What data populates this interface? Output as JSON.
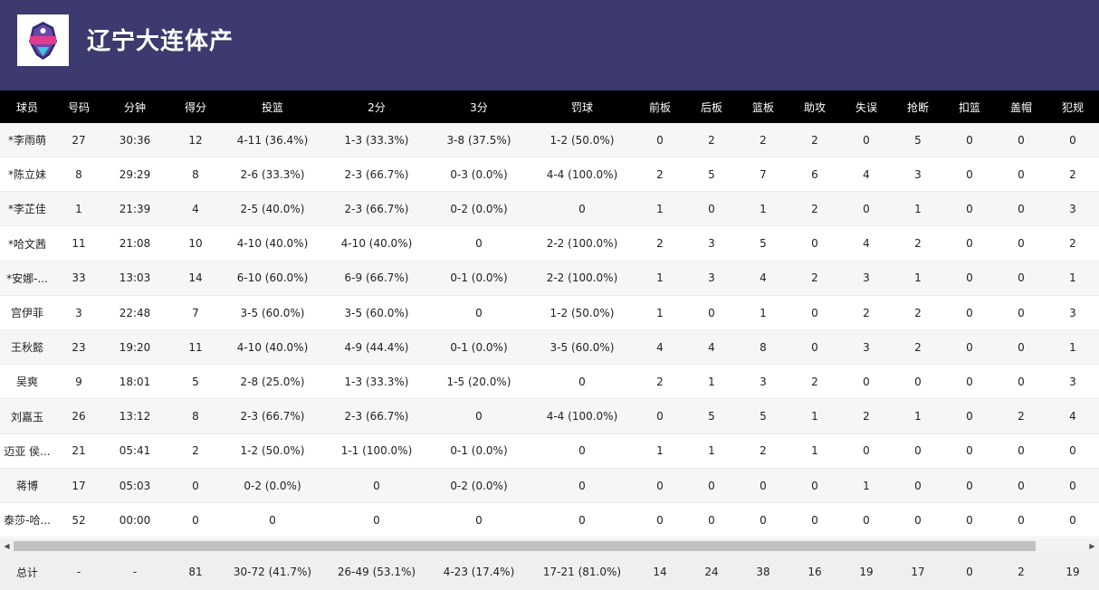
{
  "team": {
    "name": "辽宁大连体产",
    "logo_icon": "liaoning-flying-leopards-logo"
  },
  "columns": [
    "球员",
    "号码",
    "分钟",
    "得分",
    "投篮",
    "2分",
    "3分",
    "罚球",
    "前板",
    "后板",
    "篮板",
    "助攻",
    "失误",
    "抢断",
    "扣篮",
    "盖帽",
    "犯规"
  ],
  "rows": [
    [
      "*李雨萌",
      "27",
      "30:36",
      "12",
      "4-11 (36.4%)",
      "1-3 (33.3%)",
      "3-8 (37.5%)",
      "1-2 (50.0%)",
      "0",
      "2",
      "2",
      "2",
      "0",
      "5",
      "0",
      "0",
      "0"
    ],
    [
      "*陈立妹",
      "8",
      "29:29",
      "8",
      "2-6 (33.3%)",
      "2-3 (66.7%)",
      "0-3 (0.0%)",
      "4-4 (100.0%)",
      "2",
      "5",
      "7",
      "6",
      "4",
      "3",
      "0",
      "0",
      "2"
    ],
    [
      "*李芷佳",
      "1",
      "21:39",
      "4",
      "2-5 (40.0%)",
      "2-3 (66.7%)",
      "0-2 (0.0%)",
      "0",
      "1",
      "0",
      "1",
      "2",
      "0",
      "1",
      "0",
      "0",
      "3"
    ],
    [
      "*哈文茜",
      "11",
      "21:08",
      "10",
      "4-10 (40.0%)",
      "4-10 (40.0%)",
      "0",
      "2-2 (100.0%)",
      "2",
      "3",
      "5",
      "0",
      "4",
      "2",
      "0",
      "0",
      "2"
    ],
    [
      "*安娜-...",
      "33",
      "13:03",
      "14",
      "6-10 (60.0%)",
      "6-9 (66.7%)",
      "0-1 (0.0%)",
      "2-2 (100.0%)",
      "1",
      "3",
      "4",
      "2",
      "3",
      "1",
      "0",
      "0",
      "1"
    ],
    [
      "宫伊菲",
      "3",
      "22:48",
      "7",
      "3-5 (60.0%)",
      "3-5 (60.0%)",
      "0",
      "1-2 (50.0%)",
      "1",
      "0",
      "1",
      "0",
      "2",
      "2",
      "0",
      "0",
      "3"
    ],
    [
      "王秋懿",
      "23",
      "19:20",
      "11",
      "4-10 (40.0%)",
      "4-9 (44.4%)",
      "0-1 (0.0%)",
      "3-5 (60.0%)",
      "4",
      "4",
      "8",
      "0",
      "3",
      "2",
      "0",
      "0",
      "1"
    ],
    [
      "吴爽",
      "9",
      "18:01",
      "5",
      "2-8 (25.0%)",
      "1-3 (33.3%)",
      "1-5 (20.0%)",
      "0",
      "2",
      "1",
      "3",
      "2",
      "0",
      "0",
      "0",
      "0",
      "3"
    ],
    [
      "刘嘉玉",
      "26",
      "13:12",
      "8",
      "2-3 (66.7%)",
      "2-3 (66.7%)",
      "0",
      "4-4 (100.0%)",
      "0",
      "5",
      "5",
      "1",
      "2",
      "1",
      "0",
      "2",
      "4"
    ],
    [
      "迈亚 侯...",
      "21",
      "05:41",
      "2",
      "1-2 (50.0%)",
      "1-1 (100.0%)",
      "0-1 (0.0%)",
      "0",
      "1",
      "1",
      "2",
      "1",
      "0",
      "0",
      "0",
      "0",
      "0"
    ],
    [
      "蒋博",
      "17",
      "05:03",
      "0",
      "0-2 (0.0%)",
      "0",
      "0-2 (0.0%)",
      "0",
      "0",
      "0",
      "0",
      "0",
      "1",
      "0",
      "0",
      "0",
      "0"
    ],
    [
      "泰莎-哈...",
      "52",
      "00:00",
      "0",
      "0",
      "0",
      "0",
      "0",
      "0",
      "0",
      "0",
      "0",
      "0",
      "0",
      "0",
      "0",
      "0"
    ]
  ],
  "totals": [
    "总计",
    "-",
    "-",
    "81",
    "30-72 (41.7%)",
    "26-49 (53.1%)",
    "4-23 (17.4%)",
    "17-21 (81.0%)",
    "14",
    "24",
    "38",
    "16",
    "19",
    "17",
    "0",
    "2",
    "19"
  ],
  "scrollbar": {
    "left_arrow": "◀",
    "right_arrow": "▶"
  },
  "colors": {
    "header_bg": "#3c3a6e",
    "thead_bg": "#000000",
    "row_alt": "#f6f6f6",
    "totals_bg": "#efefef"
  }
}
